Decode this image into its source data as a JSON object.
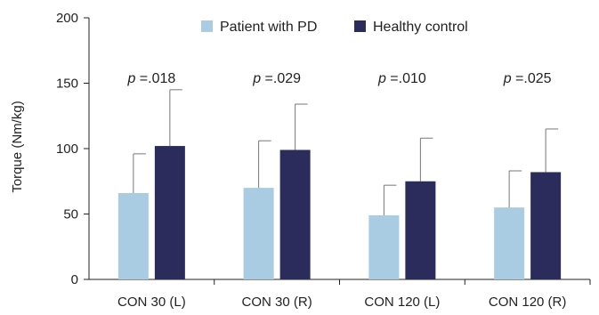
{
  "chart_data": {
    "type": "bar",
    "ylabel": "Torque (Nm/kg)",
    "ylim": [
      0,
      200
    ],
    "yticks": [
      0,
      50,
      100,
      150,
      200
    ],
    "categories": [
      "CON 30 (L)",
      "CON 30 (R)",
      "CON 120 (L)",
      "CON 120 (R)"
    ],
    "series": [
      {
        "name": "Patient with PD",
        "color": "#a9cce3",
        "values": [
          66,
          70,
          49,
          55
        ],
        "errors": [
          30,
          36,
          23,
          28
        ]
      },
      {
        "name": "Healthy control",
        "color": "#2b2b5c",
        "values": [
          102,
          99,
          75,
          82
        ],
        "errors": [
          43,
          35,
          33,
          33
        ]
      }
    ],
    "annotations": [
      {
        "italic": "p",
        "text": "=.018"
      },
      {
        "italic": "p",
        "text": "=.029"
      },
      {
        "italic": "p",
        "text": "=.010"
      },
      {
        "italic": "p",
        "text": "=.025"
      }
    ],
    "legend_position": "top"
  }
}
